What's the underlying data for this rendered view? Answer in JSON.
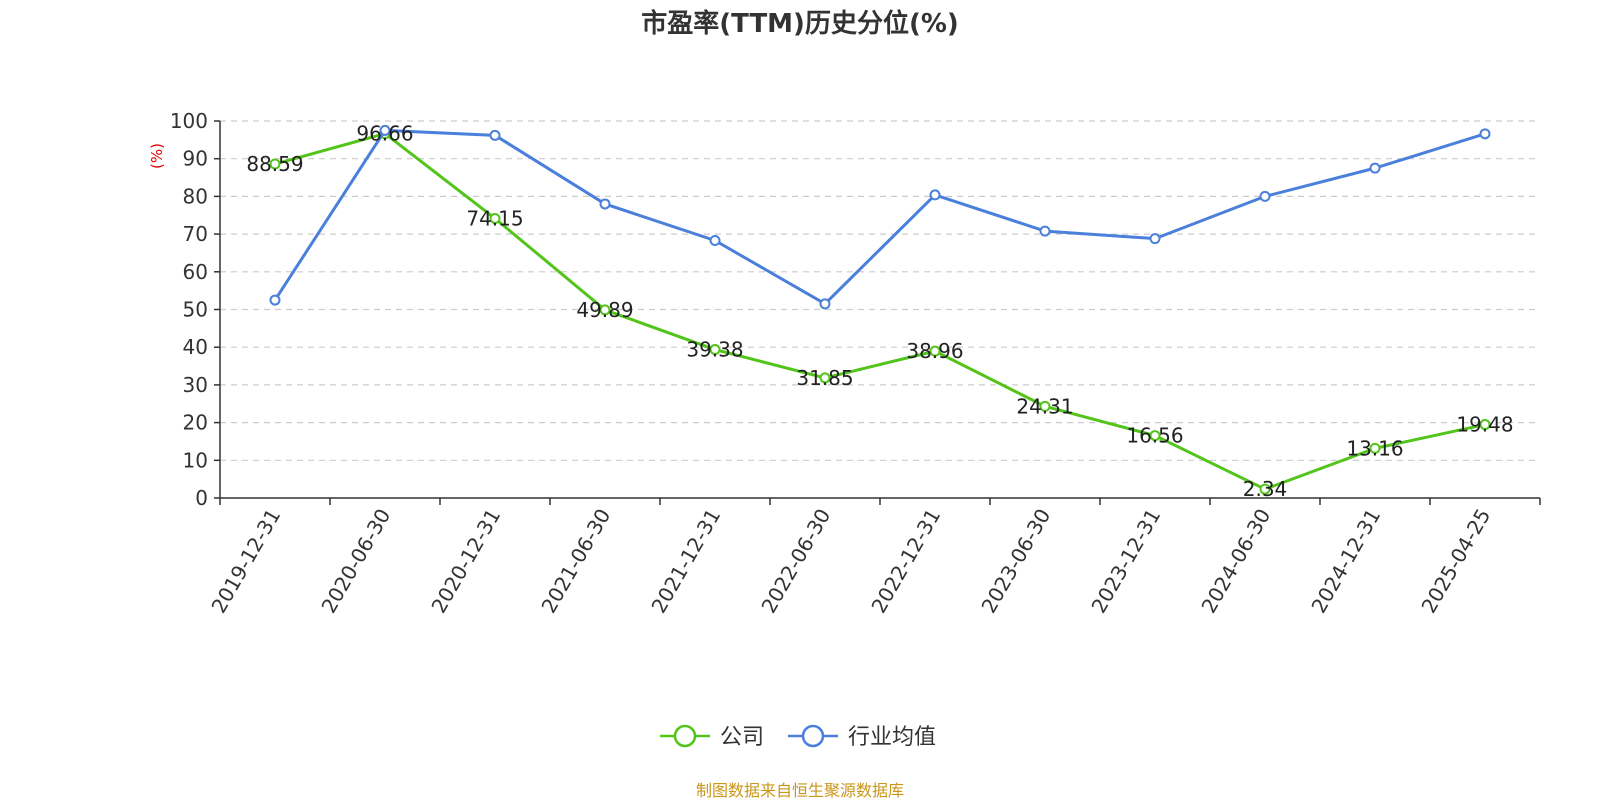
{
  "chart_data": {
    "type": "line",
    "title": "市盈率(TTM)历史分位(%)",
    "ylabel": "(%)",
    "xlabel": "",
    "categories": [
      "2019-12-31",
      "2020-06-30",
      "2020-12-31",
      "2021-06-30",
      "2021-12-31",
      "2022-06-30",
      "2022-12-31",
      "2023-06-30",
      "2023-12-31",
      "2024-06-30",
      "2024-12-31",
      "2025-04-25"
    ],
    "ylim": [
      0,
      100
    ],
    "yticks": [
      0,
      10,
      20,
      30,
      40,
      50,
      60,
      70,
      80,
      90,
      100
    ],
    "grid": true,
    "legend_position": "bottom",
    "series": [
      {
        "name": "公司",
        "color": "#52c41a",
        "values": [
          88.59,
          96.66,
          74.15,
          49.89,
          39.38,
          31.85,
          38.96,
          24.31,
          16.56,
          2.34,
          13.16,
          19.48
        ],
        "labels": [
          "88.59",
          "96.66",
          "74.15",
          "49.89",
          "39.38",
          "31.85",
          "38.96",
          "24.31",
          "16.56",
          "2.34",
          "13.16",
          "19.48"
        ]
      },
      {
        "name": "行业均值",
        "color": "#4a7fdc",
        "values": [
          52.5,
          97.5,
          96.2,
          78.0,
          68.3,
          51.5,
          80.4,
          70.8,
          68.8,
          80.0,
          87.5,
          96.6
        ]
      }
    ]
  },
  "source_text": "制图数据来自恒生聚源数据库"
}
